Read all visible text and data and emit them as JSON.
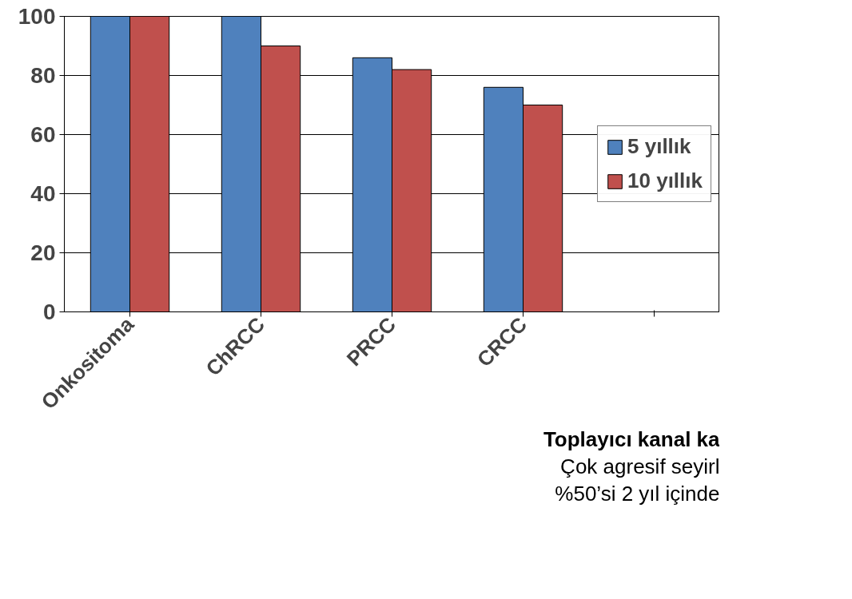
{
  "chart_data": {
    "type": "bar",
    "categories": [
      "Onkositoma",
      "ChRCC",
      "PRCC",
      "CRCC",
      null
    ],
    "series": [
      {
        "name": "5 yıllık",
        "color": "#4f81bd",
        "values": [
          100,
          100,
          86,
          76,
          null
        ]
      },
      {
        "name": "10 yıllık",
        "color": "#c0504d",
        "values": [
          100,
          90,
          82,
          70,
          null
        ]
      }
    ],
    "ylim": [
      0,
      100
    ],
    "yticks": [
      0,
      20,
      40,
      60,
      80,
      100
    ],
    "grid": "y",
    "legend": "right",
    "annotations": [
      "Toplayıcı kanal ka",
      "Çok agresif seyirl",
      "%50’si 2 yıl içinde"
    ]
  }
}
